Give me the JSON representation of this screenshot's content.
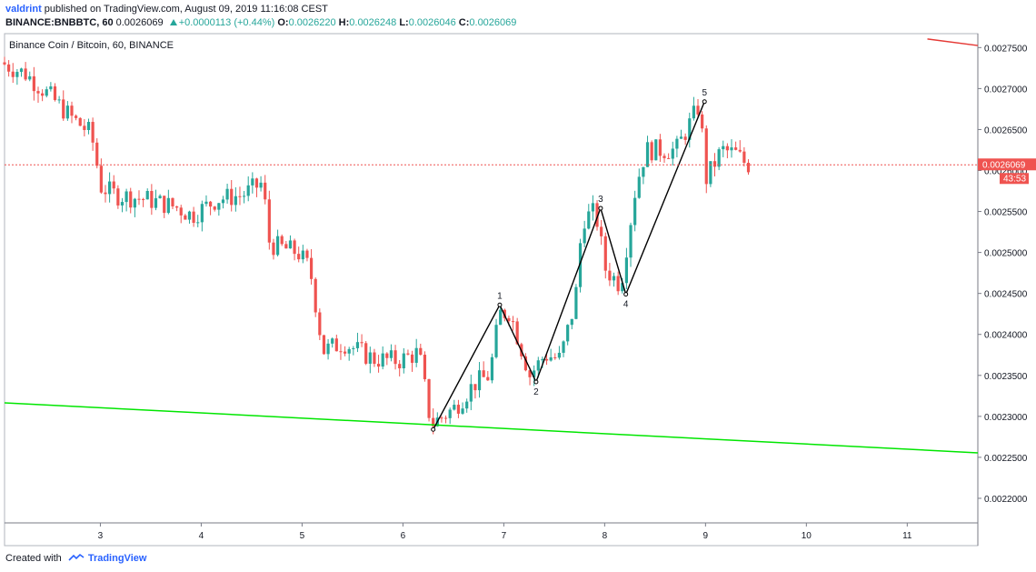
{
  "header": {
    "author": "valdrint",
    "published_text": "published on TradingView.com, August 09, 2019 11:16:08 CEST",
    "symbol": "BINANCE:BNBBTC, 60",
    "price": "0.0026069",
    "change": "+0.0000113 (+0.44%)",
    "o_label": "O:",
    "o_value": "0.0026220",
    "h_label": "H:",
    "h_value": "0.0026248",
    "l_label": "L:",
    "l_value": "0.0026046",
    "c_label": "C:",
    "c_value": "0.0026069"
  },
  "footer": {
    "created_with": "Created with",
    "brand": "TradingView"
  },
  "colors": {
    "up": "#26a69a",
    "down": "#ef5350",
    "support": "#00e600",
    "resistance": "#e53935",
    "wave": "#000000",
    "price_line": "#ef5350"
  },
  "chart_data": {
    "type": "candlestick",
    "title": "Binance Coin / Bitcoin, 60, BINANCE",
    "x_ticks": [
      3,
      4,
      5,
      6,
      7,
      8,
      9,
      10,
      11
    ],
    "x_range": [
      2.05,
      11.7
    ],
    "y_ticks": [
      "0.0022000",
      "0.0022500",
      "0.0023000",
      "0.0023500",
      "0.0024000",
      "0.0024500",
      "0.0025000",
      "0.0025500",
      "0.0026000",
      "0.0026500",
      "0.0027000",
      "0.0027500"
    ],
    "y_range": [
      0.00217,
      0.002767
    ],
    "current_price": {
      "value": 0.0026069,
      "label": "0.0026069",
      "countdown": "43:53"
    },
    "anchors": [
      [
        2.05,
        0.002732
      ],
      [
        2.3,
        0.002718
      ],
      [
        2.55,
        0.00269
      ],
      [
        2.75,
        0.002665
      ],
      [
        2.95,
        0.002645
      ],
      [
        3.05,
        0.00258
      ],
      [
        3.2,
        0.00257
      ],
      [
        3.5,
        0.002565
      ],
      [
        3.8,
        0.002555
      ],
      [
        3.95,
        0.002545
      ],
      [
        4.2,
        0.002565
      ],
      [
        4.45,
        0.00257
      ],
      [
        4.65,
        0.002585
      ],
      [
        4.72,
        0.00251
      ],
      [
        5.0,
        0.0025
      ],
      [
        5.12,
        0.00248
      ],
      [
        5.25,
        0.00238
      ],
      [
        5.45,
        0.00239
      ],
      [
        5.75,
        0.00237
      ],
      [
        6.0,
        0.002368
      ],
      [
        6.2,
        0.002378
      ],
      [
        6.32,
        0.00229
      ],
      [
        6.55,
        0.00231
      ],
      [
        6.75,
        0.00234
      ],
      [
        6.9,
        0.00235
      ],
      [
        7.0,
        0.002425
      ],
      [
        7.1,
        0.002428
      ],
      [
        7.3,
        0.00235
      ],
      [
        7.45,
        0.002375
      ],
      [
        7.6,
        0.00237
      ],
      [
        7.75,
        0.00244
      ],
      [
        7.82,
        0.00254
      ],
      [
        7.95,
        0.00255
      ],
      [
        8.05,
        0.00248
      ],
      [
        8.2,
        0.00246
      ],
      [
        8.35,
        0.00258
      ],
      [
        8.45,
        0.002625
      ],
      [
        8.6,
        0.002625
      ],
      [
        8.75,
        0.002625
      ],
      [
        8.98,
        0.00268
      ],
      [
        9.05,
        0.00259
      ],
      [
        9.2,
        0.002625
      ],
      [
        9.35,
        0.00262
      ],
      [
        9.45,
        0.002607
      ]
    ],
    "wave_points": [
      {
        "label": "",
        "x": 6.3,
        "y": 0.002284
      },
      {
        "label": "1",
        "x": 6.96,
        "y": 0.002436
      },
      {
        "label": "2",
        "x": 7.32,
        "y": 0.002342
      },
      {
        "label": "3",
        "x": 7.96,
        "y": 0.002554
      },
      {
        "label": "4",
        "x": 8.21,
        "y": 0.002449
      },
      {
        "label": "5",
        "x": 8.99,
        "y": 0.002684
      }
    ],
    "support_line": [
      [
        2.05,
        0.0023165
      ],
      [
        11.7,
        0.0022555
      ]
    ],
    "resistance_line": [
      [
        11.2,
        0.0027605
      ],
      [
        11.7,
        0.0027525
      ]
    ]
  }
}
